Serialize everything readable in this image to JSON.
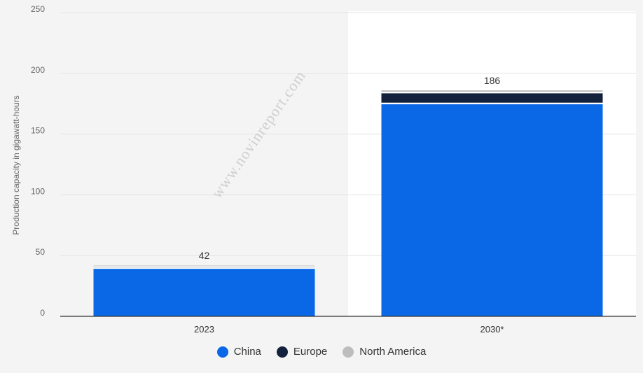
{
  "chart_data": {
    "type": "bar",
    "stacked": true,
    "categories": [
      "2023",
      "2030*"
    ],
    "series": [
      {
        "name": "China",
        "values": [
          39.5,
          175
        ],
        "color": "#0a68e6"
      },
      {
        "name": "Europe",
        "values": [
          1.5,
          9
        ],
        "color": "#14213d"
      },
      {
        "name": "North America",
        "values": [
          1,
          2
        ],
        "color": "#bdbdbd"
      }
    ],
    "totals": [
      "42",
      "186"
    ],
    "ylabel": "Production capacity in gigawatt-hours",
    "ylim": [
      0,
      250
    ],
    "yticks": [
      "0",
      "50",
      "100",
      "150",
      "200",
      "250"
    ],
    "grid": true,
    "legend": "bottom-center"
  },
  "watermark": "www.novinreport.com"
}
